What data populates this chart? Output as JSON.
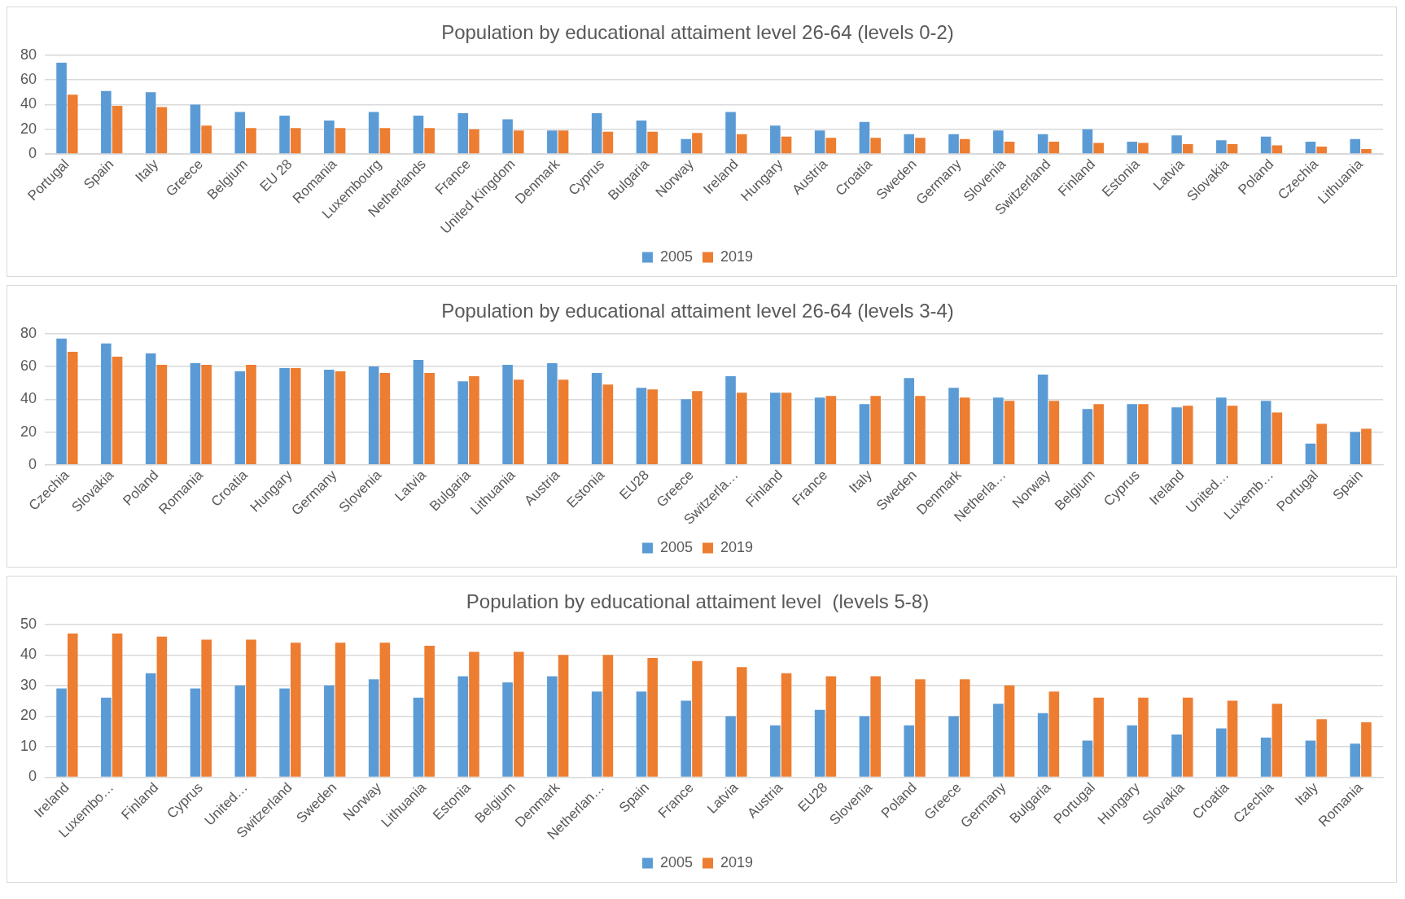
{
  "chart_data": [
    {
      "type": "bar",
      "title": "Population by educational attaiment level 26-64 (levels 0-2)",
      "categories": [
        "Portugal",
        "Spain",
        "Italy",
        "Greece",
        "Belgium",
        "EU 28",
        "Romania",
        "Luxembourg",
        "Netherlands",
        "France",
        "United Kingdom",
        "Denmark",
        "Cyprus",
        "Bulgaria",
        "Norway",
        "Ireland",
        "Hungary",
        "Austria",
        "Croatia",
        "Sweden",
        "Germany",
        "Slovenia",
        "Switzerland",
        "Finland",
        "Estonia",
        "Latvia",
        "Slovakia",
        "Poland",
        "Czechia",
        "Lithuania"
      ],
      "series": [
        {
          "name": "2005",
          "color": "#5b9bd5",
          "values": [
            74,
            51,
            50,
            40,
            34,
            31,
            27,
            34,
            31,
            33,
            28,
            19,
            33,
            27,
            12,
            34,
            23,
            19,
            26,
            16,
            16,
            19,
            16,
            20,
            10,
            15,
            11,
            14,
            10,
            12
          ]
        },
        {
          "name": "2019",
          "color": "#ed7d31",
          "values": [
            48,
            39,
            38,
            23,
            21,
            21,
            21,
            21,
            21,
            20,
            19,
            19,
            18,
            18,
            17,
            16,
            14,
            13,
            13,
            13,
            12,
            10,
            10,
            9,
            9,
            8,
            8,
            7,
            6,
            4
          ]
        }
      ],
      "ylim": [
        0,
        80
      ],
      "yticks": [
        0,
        20,
        40,
        60,
        80
      ],
      "grid": "y",
      "legend": "bottom"
    },
    {
      "type": "bar",
      "title": "Population by educational attaiment level 26-64 (levels 3-4)",
      "categories": [
        "Czechia",
        "Slovakia",
        "Poland",
        "Romania",
        "Croatia",
        "Hungary",
        "Germany",
        "Slovenia",
        "Latvia",
        "Bulgaria",
        "Lithuania",
        "Austria",
        "Estonia",
        "EU28",
        "Greece",
        "Switzerla…",
        "Finland",
        "France",
        "Italy",
        "Sweden",
        "Denmark",
        "Netherla…",
        "Norway",
        "Belgium",
        "Cyprus",
        "Ireland",
        "United…",
        "Luxemb…",
        "Portugal",
        "Spain"
      ],
      "series": [
        {
          "name": "2005",
          "color": "#5b9bd5",
          "values": [
            77,
            74,
            68,
            62,
            57,
            59,
            58,
            60,
            64,
            51,
            61,
            62,
            56,
            47,
            40,
            54,
            44,
            41,
            37,
            53,
            47,
            41,
            55,
            34,
            37,
            35,
            41,
            39,
            13,
            20
          ]
        },
        {
          "name": "2019",
          "color": "#ed7d31",
          "values": [
            69,
            66,
            61,
            61,
            61,
            59,
            57,
            56,
            56,
            54,
            52,
            52,
            49,
            46,
            45,
            44,
            44,
            42,
            42,
            42,
            41,
            39,
            39,
            37,
            37,
            36,
            36,
            32,
            25,
            22
          ]
        }
      ],
      "ylim": [
        0,
        80
      ],
      "yticks": [
        0,
        20,
        40,
        60,
        80
      ],
      "grid": "y",
      "legend": "bottom"
    },
    {
      "type": "bar",
      "title": "Population by educational attaiment level  (levels 5-8)",
      "categories": [
        "Ireland",
        "Luxembo…",
        "Finland",
        "Cyprus",
        "United…",
        "Switzerland",
        "Sweden",
        "Norway",
        "Lithuania",
        "Estonia",
        "Belgium",
        "Denmark",
        "Netherlan…",
        "Spain",
        "France",
        "Latvia",
        "Austria",
        "EU28",
        "Slovenia",
        "Poland",
        "Greece",
        "Germany",
        "Bulgaria",
        "Portugal",
        "Hungary",
        "Slovakia",
        "Croatia",
        "Czechia",
        "Italy",
        "Romania"
      ],
      "series": [
        {
          "name": "2005",
          "color": "#5b9bd5",
          "values": [
            29,
            26,
            34,
            29,
            30,
            29,
            30,
            32,
            26,
            33,
            31,
            33,
            28,
            28,
            25,
            20,
            17,
            22,
            20,
            17,
            20,
            24,
            21,
            12,
            17,
            14,
            16,
            13,
            12,
            11
          ]
        },
        {
          "name": "2019",
          "color": "#ed7d31",
          "values": [
            47,
            47,
            46,
            45,
            45,
            44,
            44,
            44,
            43,
            41,
            41,
            40,
            40,
            39,
            38,
            36,
            34,
            33,
            33,
            32,
            32,
            30,
            28,
            26,
            26,
            26,
            25,
            24,
            19,
            18
          ]
        }
      ],
      "ylim": [
        0,
        50
      ],
      "yticks": [
        0,
        10,
        20,
        30,
        40,
        50
      ],
      "grid": "y",
      "legend": "bottom"
    }
  ]
}
